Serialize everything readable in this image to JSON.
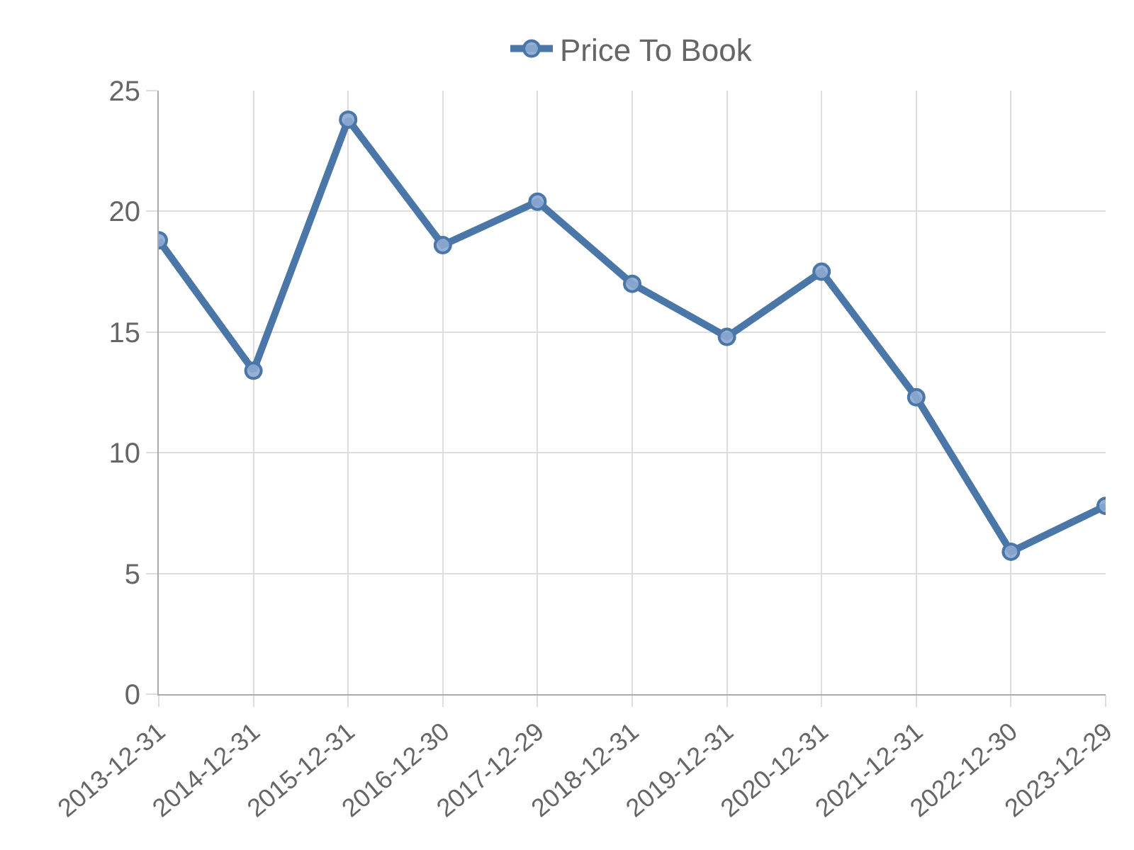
{
  "chart_data": {
    "type": "line",
    "categories": [
      "2013-12-31",
      "2014-12-31",
      "2015-12-31",
      "2016-12-30",
      "2017-12-29",
      "2018-12-31",
      "2019-12-31",
      "2020-12-31",
      "2021-12-31",
      "2022-12-30",
      "2023-12-29"
    ],
    "series": [
      {
        "name": "Price To Book",
        "color": "#4a76a8",
        "values": [
          18.8,
          13.4,
          23.8,
          18.6,
          20.4,
          17.0,
          14.8,
          17.5,
          12.3,
          5.9,
          7.8
        ]
      }
    ],
    "ylim": [
      0,
      25
    ],
    "yticks": [
      0,
      5,
      10,
      15,
      20,
      25
    ],
    "grid": true,
    "legend": "top",
    "marker": "circle",
    "line_style": "solid"
  }
}
